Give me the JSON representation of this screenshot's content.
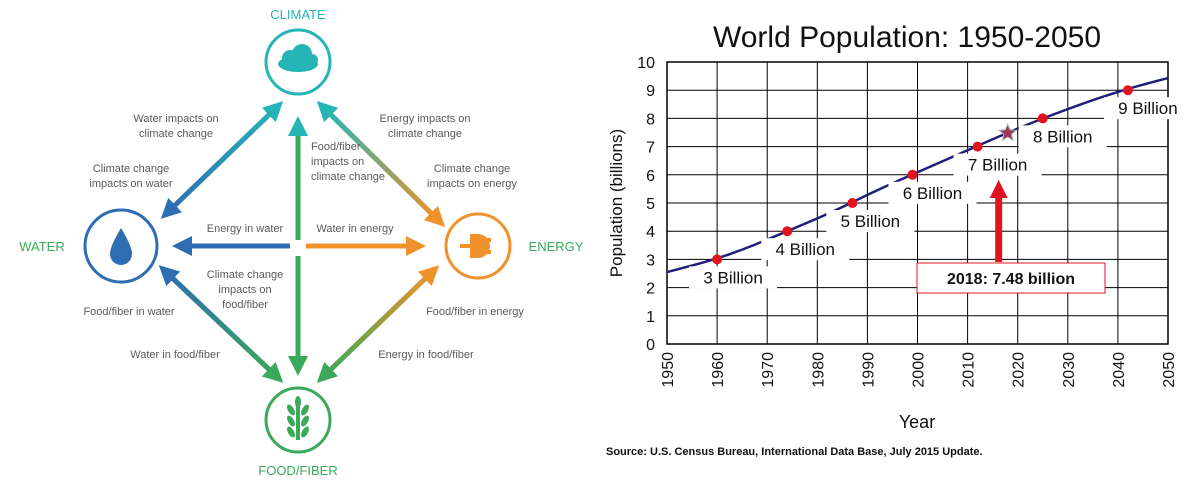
{
  "diagram": {
    "nodes": {
      "climate": {
        "label": "CLIMATE",
        "color": "#26b5b7",
        "icon": "cloud-icon"
      },
      "water": {
        "label": "WATER",
        "color": "#2f6db3",
        "icon": "water-drop-icon"
      },
      "energy": {
        "label": "ENERGY",
        "color": "#f0922b",
        "icon": "plug-icon"
      },
      "food": {
        "label": "FOOD/FIBER",
        "color": "#3aa959",
        "icon": "wheat-icon"
      }
    },
    "edge_labels": {
      "water_to_climate": [
        "Water impacts on",
        "climate change"
      ],
      "climate_to_water": [
        "Climate change",
        "impacts on water"
      ],
      "energy_to_climate": [
        "Energy impacts on",
        "climate change"
      ],
      "climate_to_energy": [
        "Climate change",
        "impacts on energy"
      ],
      "food_to_climate": [
        "Food/fiber",
        "impacts on",
        "climate change"
      ],
      "energy_in_water": [
        "Energy in water"
      ],
      "water_in_energy": [
        "Water in energy"
      ],
      "climate_to_food": [
        "Climate change",
        "impacts on",
        "food/fiber"
      ],
      "food_in_water": [
        "Food/fiber in water"
      ],
      "water_in_food": [
        "Water in food/fiber"
      ],
      "food_in_energy": [
        "Food/fiber in energy"
      ],
      "energy_in_food": [
        "Energy in food/fiber"
      ]
    }
  },
  "chart_data": {
    "type": "line",
    "title": "World Population: 1950-2050",
    "xlabel": "Year",
    "ylabel": "Population  (billions)",
    "xlim": [
      1950,
      2050
    ],
    "ylim": [
      0,
      10
    ],
    "x_ticks": [
      1950,
      1960,
      1970,
      1980,
      1990,
      2000,
      2010,
      2020,
      2030,
      2040,
      2050
    ],
    "y_ticks": [
      0,
      1,
      2,
      3,
      4,
      5,
      6,
      7,
      8,
      9,
      10
    ],
    "grid": true,
    "series": [
      {
        "x": [
          1950,
          1955,
          1960,
          1965,
          1970,
          1975,
          1980,
          1985,
          1990,
          1995,
          2000,
          2005,
          2010,
          2015,
          2020,
          2025,
          2030,
          2035,
          2040,
          2045,
          2050
        ],
        "y": [
          2.55,
          2.78,
          3.03,
          3.34,
          3.7,
          4.08,
          4.45,
          4.85,
          5.29,
          5.7,
          6.09,
          6.48,
          6.87,
          7.26,
          7.64,
          8.0,
          8.33,
          8.65,
          8.94,
          9.2,
          9.43
        ],
        "color": "#1f1f7a"
      }
    ],
    "milestones": [
      {
        "year": 1960,
        "value": 3,
        "label": "3 Billion"
      },
      {
        "year": 1974,
        "value": 4,
        "label": "4 Billion"
      },
      {
        "year": 1987,
        "value": 5,
        "label": "5 Billion"
      },
      {
        "year": 1999,
        "value": 6,
        "label": "6 Billion"
      },
      {
        "year": 2012,
        "value": 7,
        "label": "7 Billion"
      },
      {
        "year": 2025,
        "value": 8,
        "label": "8 Billion"
      },
      {
        "year": 2042,
        "value": 9,
        "label": "9 Billion"
      }
    ],
    "highlight": {
      "year": 2018,
      "value": 7.48,
      "label": "2018: 7.48 billion",
      "color": "#e0141e"
    },
    "source": "Source: U.S. Census Bureau, International Data Base, July 2015 Update."
  }
}
